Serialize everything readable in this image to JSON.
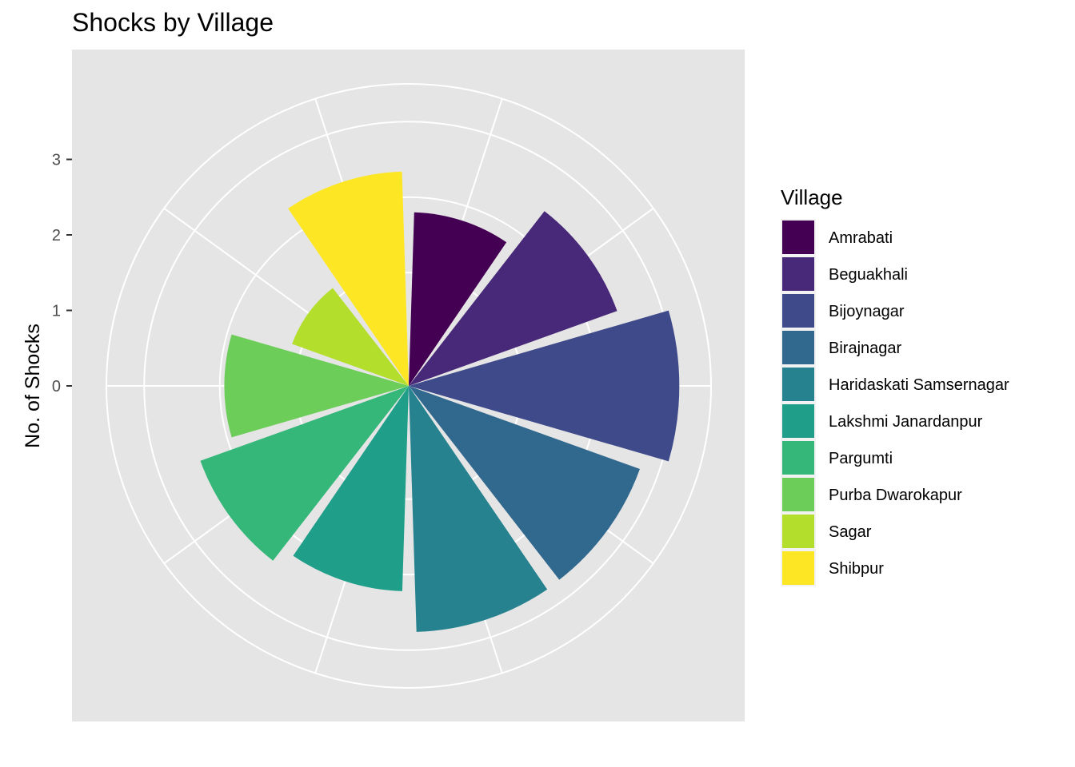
{
  "chart_data": {
    "type": "bar",
    "coord": "polar",
    "title": "Shocks by Village",
    "xlabel": "",
    "ylabel": "No. of Shocks",
    "y_ticks": [
      "0",
      "1",
      "2",
      "3"
    ],
    "ylim": [
      0,
      4
    ],
    "grid": true,
    "legend": {
      "title": "Village",
      "position": "right"
    },
    "categories": [
      "Amrabati",
      "Beguakhali",
      "Bijoynagar",
      "Birajnagar",
      "Haridaskati Samsernagar",
      "Lakshmi Janardanpur",
      "Pargumti",
      "Purba Dwarokapur",
      "Sagar",
      "Shibpur"
    ],
    "values": [
      2.3,
      2.93,
      3.58,
      3.25,
      3.26,
      2.72,
      2.93,
      2.44,
      1.64,
      2.84
    ],
    "colors": [
      "#440154",
      "#482878",
      "#3E4A89",
      "#31688E",
      "#26828E",
      "#1F9E89",
      "#35B779",
      "#6DCD59",
      "#B4DE2C",
      "#FDE725"
    ]
  }
}
